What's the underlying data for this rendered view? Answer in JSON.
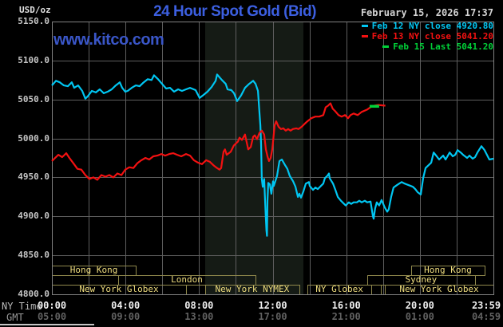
{
  "header": {
    "unit": "USD/oz",
    "title": "24 Hour Spot Gold (Bid)",
    "datetime": "February 15, 2026 17:37",
    "watermark": "www.kitco.com"
  },
  "legend": [
    {
      "label": "Feb 12 NY close 4920.80",
      "color": "#00c6f2"
    },
    {
      "label": "Feb 13 NY close 5041.20",
      "color": "#f31111"
    },
    {
      "label": "Feb 15 Last 5041.20",
      "color": "#00d238"
    }
  ],
  "chart_data": {
    "type": "line",
    "title": "24 Hour Spot Gold (Bid)",
    "ylabel": "USD/oz",
    "grid": true,
    "colors": {
      "background": "#000000",
      "gridline": "#5e5e5e",
      "plot_border": "#828282",
      "session_border": "#90894c",
      "session_text": "#eedc7e",
      "nymex_shading": "#151b15"
    },
    "y_axis": {
      "min": 4800,
      "max": 5150,
      "tick_step": 50,
      "ticks": [
        {
          "v": 5150,
          "label": "5150.0"
        },
        {
          "v": 5100,
          "label": "5100.0"
        },
        {
          "v": 5050,
          "label": "5050.0"
        },
        {
          "v": 5000,
          "label": "5000.0"
        },
        {
          "v": 4950,
          "label": "4950.0"
        },
        {
          "v": 4900,
          "label": "4900.0"
        },
        {
          "v": 4850,
          "label": "4850.0"
        },
        {
          "v": 4800,
          "label": "4800.0"
        }
      ]
    },
    "x_axis": {
      "range_hours": [
        0,
        24
      ],
      "gridline_every_hours": 2,
      "ny_caption": "NY Time",
      "gmt_caption": "GMT",
      "ticks": [
        {
          "h": 0,
          "ny": "00:00",
          "gmt": "05:00"
        },
        {
          "h": 4,
          "ny": "04:00",
          "gmt": "09:00"
        },
        {
          "h": 8,
          "ny": "08:00",
          "gmt": "13:00"
        },
        {
          "h": 12,
          "ny": "12:00",
          "gmt": "17:00"
        },
        {
          "h": 16,
          "ny": "16:00",
          "gmt": "21:00"
        },
        {
          "h": 20,
          "ny": "20:00",
          "gmt": "01:00"
        },
        {
          "h": 23.983,
          "ny": "23:59",
          "gmt": "04:59"
        }
      ]
    },
    "nymex_shading": {
      "start": 8.33,
      "end": 13.67
    },
    "sessions": [
      {
        "row": 1,
        "label": "Hong Kong",
        "start": 0,
        "end": 4.56
      },
      {
        "row": 1,
        "label": "Hong Kong",
        "start": 19.53,
        "end": 23.52
      },
      {
        "row": 2,
        "label": "London",
        "start": 3.6,
        "end": 11.07
      },
      {
        "row": 2,
        "label": "Sydney",
        "start": 17.14,
        "end": 23.0
      },
      {
        "row": 3,
        "label": "New York Globex",
        "start": 0,
        "end": 7.29
      },
      {
        "row": 3,
        "label": "",
        "start": 7.29,
        "end": 8.33
      },
      {
        "row": 3,
        "label": "New York NYMEX",
        "start": 8.33,
        "end": 13.45
      },
      {
        "row": 3,
        "label": "NY Globex",
        "start": 13.89,
        "end": 17.36
      },
      {
        "row": 3,
        "label": "",
        "start": 17.36,
        "end": 17.88
      },
      {
        "row": 3,
        "label": "New York Globex",
        "start": 18.1,
        "end": 24
      }
    ],
    "series": [
      {
        "name": "Feb 12 NY close 4920.80",
        "color": "#00c6f2",
        "width": 2.2,
        "points": [
          [
            0,
            5068
          ],
          [
            0.22,
            5074
          ],
          [
            0.43,
            5072
          ],
          [
            0.65,
            5068
          ],
          [
            0.87,
            5067
          ],
          [
            1.08,
            5072
          ],
          [
            1.21,
            5065
          ],
          [
            1.43,
            5068
          ],
          [
            1.65,
            5061
          ],
          [
            1.82,
            5051
          ],
          [
            1.95,
            5054
          ],
          [
            2.17,
            5061
          ],
          [
            2.39,
            5059
          ],
          [
            2.6,
            5063
          ],
          [
            2.82,
            5058
          ],
          [
            3.04,
            5060
          ],
          [
            3.25,
            5063
          ],
          [
            3.47,
            5068
          ],
          [
            3.69,
            5072
          ],
          [
            3.82,
            5065
          ],
          [
            3.99,
            5060
          ],
          [
            4.12,
            5061
          ],
          [
            4.34,
            5065
          ],
          [
            4.56,
            5068
          ],
          [
            4.77,
            5067
          ],
          [
            4.99,
            5072
          ],
          [
            5.21,
            5076
          ],
          [
            5.42,
            5075
          ],
          [
            5.55,
            5081
          ],
          [
            5.77,
            5076
          ],
          [
            5.99,
            5070
          ],
          [
            6.21,
            5064
          ],
          [
            6.42,
            5065
          ],
          [
            6.64,
            5060
          ],
          [
            6.86,
            5063
          ],
          [
            7.07,
            5061
          ],
          [
            7.29,
            5063
          ],
          [
            7.51,
            5065
          ],
          [
            7.81,
            5062
          ],
          [
            8.03,
            5052
          ],
          [
            8.25,
            5056
          ],
          [
            8.46,
            5060
          ],
          [
            8.68,
            5066
          ],
          [
            8.9,
            5074
          ],
          [
            8.98,
            5082
          ],
          [
            9.24,
            5075
          ],
          [
            9.45,
            5070
          ],
          [
            9.55,
            5063
          ],
          [
            9.75,
            5062
          ],
          [
            9.9,
            5058
          ],
          [
            10.07,
            5048
          ],
          [
            10.28,
            5055
          ],
          [
            10.5,
            5065
          ],
          [
            10.72,
            5070
          ],
          [
            10.94,
            5074
          ],
          [
            11.07,
            5070
          ],
          [
            11.2,
            5061
          ],
          [
            11.28,
            5034
          ],
          [
            11.33,
            5017
          ],
          [
            11.37,
            4993
          ],
          [
            11.41,
            4948
          ],
          [
            11.46,
            4938
          ],
          [
            11.5,
            4944
          ],
          [
            11.54,
            4948
          ],
          [
            11.57,
            4930
          ],
          [
            11.59,
            4918
          ],
          [
            11.63,
            4897
          ],
          [
            11.66,
            4882
          ],
          [
            11.69,
            4875
          ],
          [
            11.72,
            4920
          ],
          [
            11.76,
            4943
          ],
          [
            11.85,
            4941
          ],
          [
            11.93,
            4929
          ],
          [
            12.02,
            4945
          ],
          [
            12.06,
            4939
          ],
          [
            12.24,
            4952
          ],
          [
            12.37,
            4971
          ],
          [
            12.5,
            4973
          ],
          [
            12.67,
            4966
          ],
          [
            12.8,
            4961
          ],
          [
            12.93,
            4952
          ],
          [
            13.11,
            4945
          ],
          [
            13.24,
            4938
          ],
          [
            13.37,
            4925
          ],
          [
            13.45,
            4929
          ],
          [
            13.54,
            4924
          ],
          [
            13.67,
            4932
          ],
          [
            13.8,
            4942
          ],
          [
            13.97,
            4944
          ],
          [
            14.02,
            4939
          ],
          [
            14.19,
            4934
          ],
          [
            14.32,
            4937
          ],
          [
            14.45,
            4935
          ],
          [
            14.62,
            4939
          ],
          [
            14.75,
            4942
          ],
          [
            14.84,
            4949
          ],
          [
            14.97,
            4952
          ],
          [
            15.06,
            4955
          ],
          [
            15.1,
            4949
          ],
          [
            15.28,
            4942
          ],
          [
            15.41,
            4934
          ],
          [
            15.54,
            4925
          ],
          [
            15.71,
            4920
          ],
          [
            15.84,
            4917
          ],
          [
            15.97,
            4914
          ],
          [
            16.14,
            4918
          ],
          [
            16.27,
            4916
          ],
          [
            16.4,
            4918
          ],
          [
            16.58,
            4918
          ],
          [
            16.71,
            4920
          ],
          [
            16.84,
            4918
          ],
          [
            17.01,
            4920
          ],
          [
            17.14,
            4918
          ],
          [
            17.32,
            4919
          ],
          [
            17.45,
            4900
          ],
          [
            17.49,
            4897
          ],
          [
            17.57,
            4910
          ],
          [
            17.66,
            4918
          ],
          [
            17.79,
            4914
          ],
          [
            17.92,
            4921
          ],
          [
            18.1,
            4911
          ],
          [
            18.23,
            4906
          ],
          [
            18.31,
            4909
          ],
          [
            18.44,
            4925
          ],
          [
            18.57,
            4937
          ],
          [
            18.75,
            4940
          ],
          [
            18.88,
            4942
          ],
          [
            19.01,
            4944
          ],
          [
            19.18,
            4942
          ],
          [
            19.4,
            4940
          ],
          [
            19.62,
            4938
          ],
          [
            19.75,
            4935
          ],
          [
            19.88,
            4931
          ],
          [
            20.05,
            4928
          ],
          [
            20.18,
            4949
          ],
          [
            20.31,
            4962
          ],
          [
            20.49,
            4966
          ],
          [
            20.62,
            4969
          ],
          [
            20.75,
            4982
          ],
          [
            20.92,
            4977
          ],
          [
            21.05,
            4973
          ],
          [
            21.27,
            4978
          ],
          [
            21.4,
            4973
          ],
          [
            21.62,
            4982
          ],
          [
            21.79,
            4977
          ],
          [
            21.92,
            4979
          ],
          [
            22.05,
            4985
          ],
          [
            22.22,
            4982
          ],
          [
            22.35,
            4979
          ],
          [
            22.57,
            4975
          ],
          [
            22.7,
            4978
          ],
          [
            22.87,
            4974
          ],
          [
            23,
            4976
          ],
          [
            23.13,
            4982
          ],
          [
            23.35,
            4990
          ],
          [
            23.52,
            4985
          ],
          [
            23.65,
            4979
          ],
          [
            23.78,
            4973
          ],
          [
            24,
            4974
          ]
        ]
      },
      {
        "name": "Feb 13 NY close 5041.20",
        "color": "#f31111",
        "width": 2.2,
        "points": [
          [
            0,
            4971
          ],
          [
            0.13,
            4974
          ],
          [
            0.35,
            4979
          ],
          [
            0.56,
            4976
          ],
          [
            0.78,
            4981
          ],
          [
            0.95,
            4975
          ],
          [
            1.17,
            4968
          ],
          [
            1.39,
            4961
          ],
          [
            1.6,
            4960
          ],
          [
            1.82,
            4953
          ],
          [
            2.04,
            4948
          ],
          [
            2.26,
            4950
          ],
          [
            2.47,
            4947
          ],
          [
            2.69,
            4953
          ],
          [
            2.91,
            4951
          ],
          [
            3.12,
            4953
          ],
          [
            3.34,
            4950
          ],
          [
            3.56,
            4955
          ],
          [
            3.78,
            4953
          ],
          [
            3.99,
            4960
          ],
          [
            4.21,
            4963
          ],
          [
            4.43,
            4962
          ],
          [
            4.64,
            4968
          ],
          [
            4.86,
            4972
          ],
          [
            5.08,
            4975
          ],
          [
            5.29,
            4973
          ],
          [
            5.51,
            4977
          ],
          [
            5.73,
            4978
          ],
          [
            5.95,
            4980
          ],
          [
            6.16,
            4978
          ],
          [
            6.38,
            4980
          ],
          [
            6.6,
            4981
          ],
          [
            6.81,
            4979
          ],
          [
            7.03,
            4977
          ],
          [
            7.29,
            4980
          ],
          [
            7.51,
            4978
          ],
          [
            7.72,
            4972
          ],
          [
            7.94,
            4969
          ],
          [
            8.16,
            4967
          ],
          [
            8.38,
            4972
          ],
          [
            8.59,
            4970
          ],
          [
            8.81,
            4965
          ],
          [
            8.98,
            4962
          ],
          [
            9.11,
            4960
          ],
          [
            9.2,
            4962
          ],
          [
            9.33,
            4983
          ],
          [
            9.41,
            4986
          ],
          [
            9.5,
            4979
          ],
          [
            9.72,
            4983
          ],
          [
            9.89,
            4991
          ],
          [
            10.11,
            4996
          ],
          [
            10.2,
            5001
          ],
          [
            10.33,
            4998
          ],
          [
            10.5,
            5005
          ],
          [
            10.59,
            4995
          ],
          [
            10.67,
            4986
          ],
          [
            10.81,
            4989
          ],
          [
            10.89,
            4997
          ],
          [
            10.94,
            5002
          ],
          [
            11.03,
            5004
          ],
          [
            11.15,
            4999
          ],
          [
            11.28,
            5007
          ],
          [
            11.41,
            5010
          ],
          [
            11.54,
            5005
          ],
          [
            11.63,
            4986
          ],
          [
            11.72,
            4977
          ],
          [
            11.8,
            4971
          ],
          [
            11.89,
            4975
          ],
          [
            11.98,
            4986
          ],
          [
            12.02,
            4996
          ],
          [
            12.11,
            5017
          ],
          [
            12.19,
            5022
          ],
          [
            12.32,
            5015
          ],
          [
            12.45,
            5012
          ],
          [
            12.58,
            5013
          ],
          [
            12.71,
            5010
          ],
          [
            12.84,
            5012
          ],
          [
            12.97,
            5010
          ],
          [
            13.1,
            5012
          ],
          [
            13.28,
            5013
          ],
          [
            13.41,
            5012
          ],
          [
            13.58,
            5015
          ],
          [
            13.75,
            5019
          ],
          [
            13.89,
            5022
          ],
          [
            14.1,
            5026
          ],
          [
            14.32,
            5028
          ],
          [
            14.53,
            5028
          ],
          [
            14.75,
            5030
          ],
          [
            14.88,
            5040
          ],
          [
            15.01,
            5042
          ],
          [
            15.14,
            5045
          ],
          [
            15.27,
            5038
          ],
          [
            15.4,
            5035
          ],
          [
            15.58,
            5030
          ],
          [
            15.75,
            5028
          ],
          [
            15.93,
            5030
          ],
          [
            16.1,
            5026
          ],
          [
            16.23,
            5030
          ],
          [
            16.4,
            5032
          ],
          [
            16.62,
            5030
          ],
          [
            16.84,
            5034
          ],
          [
            17.14,
            5037
          ],
          [
            17.31,
            5040
          ],
          [
            17.53,
            5042
          ],
          [
            17.75,
            5043
          ],
          [
            18.13,
            5042
          ]
        ]
      },
      {
        "name": "Feb 15 Last 5041.20",
        "color": "#00d238",
        "width": 3.5,
        "points": [
          [
            17.27,
            5041.2
          ],
          [
            17.79,
            5041.2
          ]
        ]
      }
    ]
  }
}
